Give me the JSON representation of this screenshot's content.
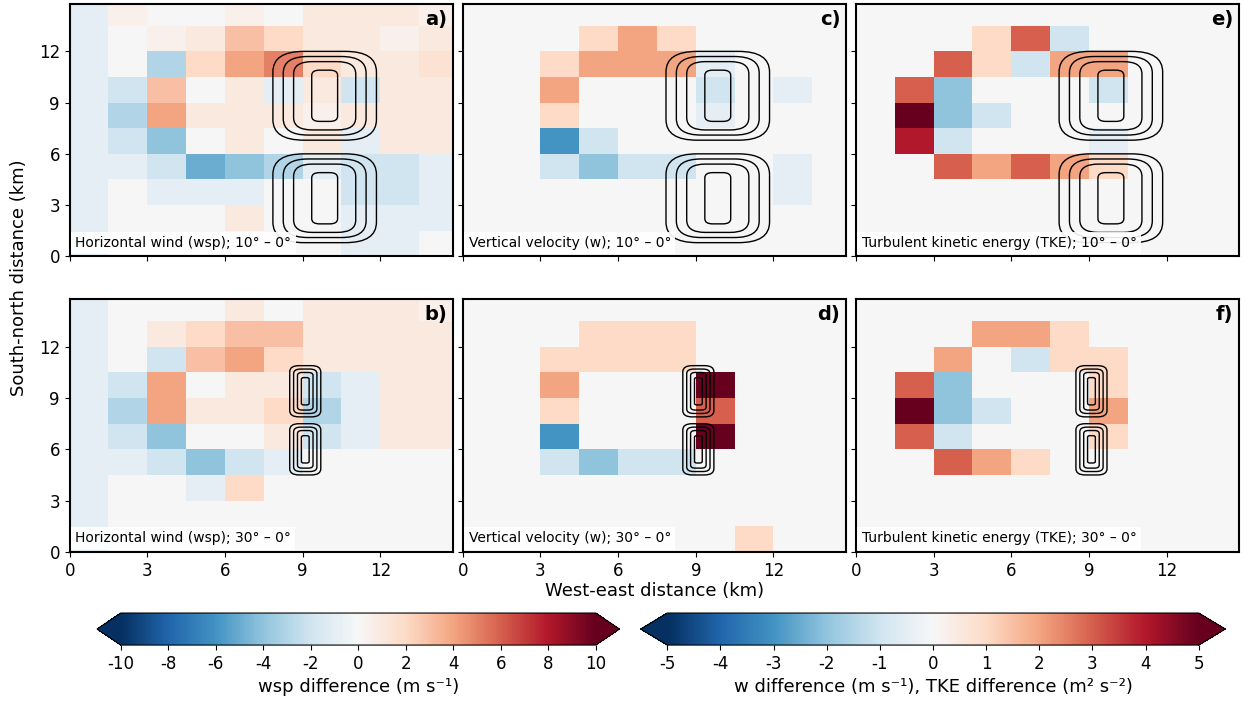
{
  "chart_data": [
    {
      "type": "heatmap",
      "panel_label": "a)",
      "title": "Horizontal wind (wsp); 10° – 0°",
      "ylabel": "South-north distance (km)",
      "xlim": [
        0,
        14.8
      ],
      "ylim": [
        0,
        14.8
      ],
      "xticks": [
        0,
        3,
        6,
        9,
        12
      ],
      "yticks": [
        0,
        3,
        6,
        9,
        12
      ],
      "tick_labels": "y",
      "clim": [
        -10,
        10
      ],
      "x_edges": [
        0,
        1.5,
        3,
        4.5,
        6,
        7.5,
        9,
        10.5,
        12,
        13.5,
        15
      ],
      "y_edges": [
        0,
        1.5,
        3,
        4.5,
        6,
        7.5,
        9,
        10.5,
        12,
        13.5,
        15
      ],
      "cells": [
        [
          -1,
          0,
          0,
          0,
          0,
          0,
          0,
          -1,
          -1,
          0
        ],
        [
          -1,
          0,
          0,
          0,
          1,
          0,
          0,
          -1,
          -1,
          -1
        ],
        [
          -1,
          0,
          -1,
          -1,
          -1,
          0,
          0,
          -2,
          -2,
          -1
        ],
        [
          -1,
          -1,
          -2,
          -5,
          -4,
          -3,
          -1,
          -2,
          -2,
          -1
        ],
        [
          -1,
          -2,
          -4,
          0,
          1,
          0,
          1,
          -1,
          1,
          1
        ],
        [
          -1,
          -3,
          4,
          1,
          1,
          1,
          0.5,
          1,
          1,
          1
        ],
        [
          -1,
          -2,
          3,
          0,
          1,
          -1,
          1,
          -2,
          1,
          1
        ],
        [
          -1,
          0,
          -3,
          2,
          4,
          5,
          2,
          1,
          1,
          1.5
        ],
        [
          -1,
          0,
          0.5,
          1,
          3,
          2,
          1,
          1,
          0.5,
          1
        ],
        [
          -1,
          0.5,
          0,
          0,
          0.5,
          0,
          1,
          1,
          1,
          0.5
        ]
      ],
      "contours": [
        {
          "x": 9.85,
          "y": 9.4,
          "half_widths": [
            0.5,
            1.2,
            1.6,
            2.0
          ],
          "half_heights": [
            1.5,
            2.0,
            2.3,
            2.6
          ]
        },
        {
          "x": 9.85,
          "y": 3.4,
          "half_widths": [
            0.5,
            1.2,
            1.6,
            2.0
          ],
          "half_heights": [
            1.5,
            2.0,
            2.3,
            2.6
          ]
        }
      ]
    },
    {
      "type": "heatmap",
      "panel_label": "b)",
      "title": "Horizontal wind (wsp); 30° – 0°",
      "xlim": [
        0,
        14.8
      ],
      "ylim": [
        0,
        14.8
      ],
      "xticks": [
        0,
        3,
        6,
        9,
        12
      ],
      "yticks": [
        0,
        3,
        6,
        9,
        12
      ],
      "tick_labels": true,
      "clim": [
        -10,
        10
      ],
      "x_edges": [
        0,
        1.5,
        3,
        4.5,
        6,
        7.5,
        9,
        10.5,
        12,
        13.5,
        15
      ],
      "y_edges": [
        0,
        1.5,
        3,
        4.5,
        6,
        7.5,
        9,
        10.5,
        12,
        13.5,
        15
      ],
      "cells": [
        [
          -1,
          0,
          0,
          0,
          0,
          0,
          0,
          0,
          0,
          0
        ],
        [
          -1,
          0,
          0,
          0,
          0,
          0,
          0,
          0,
          0,
          0
        ],
        [
          -1,
          0,
          0,
          -1,
          2,
          0,
          0,
          0,
          0,
          0
        ],
        [
          -1,
          -1,
          -2,
          -4,
          -2,
          -1,
          0,
          0,
          0,
          0
        ],
        [
          -1,
          -2,
          -4,
          0,
          0,
          1,
          -2,
          -1,
          1,
          1
        ],
        [
          -1,
          -3,
          4,
          1,
          1,
          2,
          -3,
          -1,
          1,
          1
        ],
        [
          -1,
          -2,
          4,
          0,
          1,
          1,
          -2,
          -1,
          1,
          1
        ],
        [
          -1,
          0,
          -2,
          3,
          4,
          2,
          1,
          1,
          1,
          1
        ],
        [
          -1,
          0,
          1,
          2,
          3,
          3,
          1,
          1,
          1,
          1
        ],
        [
          -1,
          0,
          0,
          0,
          1,
          0,
          1,
          1,
          1,
          0.5
        ]
      ],
      "contours": [
        {
          "x": 9.1,
          "y": 9.4,
          "half_widths": [
            0.15,
            0.3,
            0.45,
            0.6
          ],
          "half_heights": [
            0.8,
            1.1,
            1.3,
            1.5
          ]
        },
        {
          "x": 9.1,
          "y": 6.0,
          "half_widths": [
            0.15,
            0.3,
            0.45,
            0.6
          ],
          "half_heights": [
            0.8,
            1.1,
            1.3,
            1.5
          ]
        }
      ]
    },
    {
      "type": "heatmap",
      "panel_label": "c)",
      "title": "Vertical velocity (w); 10° – 0°",
      "xlim": [
        0,
        14.8
      ],
      "ylim": [
        0,
        14.8
      ],
      "xticks": [
        0,
        3,
        6,
        9,
        12
      ],
      "yticks": [
        0,
        3,
        6,
        9,
        12
      ],
      "tick_labels": false,
      "clim": [
        -5,
        5
      ],
      "x_edges": [
        0,
        1.5,
        3,
        4.5,
        6,
        7.5,
        9,
        10.5,
        12,
        13.5,
        15
      ],
      "y_edges": [
        0,
        1.5,
        3,
        4.5,
        6,
        7.5,
        9,
        10.5,
        12,
        13.5,
        15
      ],
      "cells": [
        [
          0,
          0,
          0,
          0,
          0,
          0,
          0,
          0,
          0,
          0
        ],
        [
          0,
          0,
          0,
          0,
          0,
          0,
          0,
          0,
          0,
          0
        ],
        [
          0,
          0,
          0,
          0,
          0,
          0,
          0,
          0,
          -0.5,
          0
        ],
        [
          0,
          0,
          -1,
          -2,
          -1,
          -1,
          0,
          0,
          -0.5,
          0
        ],
        [
          0,
          0,
          -3,
          -1,
          0,
          0,
          0,
          0,
          0,
          0
        ],
        [
          0,
          0,
          1,
          0,
          0,
          0,
          -0.5,
          0,
          0,
          0
        ],
        [
          0,
          0,
          2,
          0,
          0,
          0,
          -1,
          0,
          -0.5,
          0
        ],
        [
          0,
          0,
          1,
          2,
          2,
          2,
          -0.5,
          0,
          0,
          0
        ],
        [
          0,
          0,
          0,
          1,
          2,
          1,
          0,
          0,
          0,
          0
        ],
        [
          0,
          0,
          0,
          0,
          0,
          0,
          0,
          0,
          0,
          0
        ]
      ],
      "contours": [
        {
          "x": 9.85,
          "y": 9.4,
          "half_widths": [
            0.5,
            1.2,
            1.6,
            2.0
          ],
          "half_heights": [
            1.5,
            2.0,
            2.3,
            2.6
          ]
        },
        {
          "x": 9.85,
          "y": 3.4,
          "half_widths": [
            0.5,
            1.2,
            1.6,
            2.0
          ],
          "half_heights": [
            1.5,
            2.0,
            2.3,
            2.6
          ]
        }
      ]
    },
    {
      "type": "heatmap",
      "panel_label": "d)",
      "title": "Vertical velocity (w); 30° – 0°",
      "xlabel": "West-east distance (km)",
      "xlim": [
        0,
        14.8
      ],
      "ylim": [
        0,
        14.8
      ],
      "xticks": [
        0,
        3,
        6,
        9,
        12
      ],
      "yticks": [
        0,
        3,
        6,
        9,
        12
      ],
      "tick_labels": "x",
      "clim": [
        -5,
        5
      ],
      "x_edges": [
        0,
        1.5,
        3,
        4.5,
        6,
        7.5,
        9,
        10.5,
        12,
        13.5,
        15
      ],
      "y_edges": [
        0,
        1.5,
        3,
        4.5,
        6,
        7.5,
        9,
        10.5,
        12,
        13.5,
        15
      ],
      "cells": [
        [
          0,
          0,
          0,
          0,
          0,
          0,
          0,
          1,
          0,
          0
        ],
        [
          0,
          0,
          0,
          0,
          0,
          0,
          0,
          0,
          0,
          0
        ],
        [
          0,
          0,
          0,
          0,
          0,
          0,
          0,
          0,
          0,
          0
        ],
        [
          0,
          0,
          -1,
          -2,
          -1,
          -1,
          0,
          0,
          0,
          0
        ],
        [
          0,
          0,
          -3,
          0,
          0,
          0,
          5,
          0,
          0,
          0
        ],
        [
          0,
          0,
          1,
          0,
          0,
          0,
          3,
          0,
          0,
          0
        ],
        [
          0,
          0,
          2,
          0,
          0,
          0,
          5,
          0,
          0,
          0
        ],
        [
          0,
          0,
          1,
          1,
          1,
          1,
          0,
          0,
          0,
          0
        ],
        [
          0,
          0,
          0,
          1,
          1,
          1,
          0,
          0,
          0,
          0
        ],
        [
          0,
          0,
          0,
          0,
          0,
          0,
          0,
          0,
          0,
          0
        ]
      ],
      "contours": [
        {
          "x": 9.1,
          "y": 9.4,
          "half_widths": [
            0.15,
            0.3,
            0.45,
            0.6
          ],
          "half_heights": [
            0.8,
            1.1,
            1.3,
            1.5
          ]
        },
        {
          "x": 9.1,
          "y": 6.0,
          "half_widths": [
            0.15,
            0.3,
            0.45,
            0.6
          ],
          "half_heights": [
            0.8,
            1.1,
            1.3,
            1.5
          ]
        }
      ]
    },
    {
      "type": "heatmap",
      "panel_label": "e)",
      "title": "Turbulent kinetic energy (TKE); 10° – 0°",
      "xlim": [
        0,
        14.8
      ],
      "ylim": [
        0,
        14.8
      ],
      "xticks": [
        0,
        3,
        6,
        9,
        12
      ],
      "yticks": [
        0,
        3,
        6,
        9,
        12
      ],
      "tick_labels": false,
      "clim": [
        -5,
        5
      ],
      "x_edges": [
        0,
        1.5,
        3,
        4.5,
        6,
        7.5,
        9,
        10.5,
        12,
        13.5,
        15
      ],
      "y_edges": [
        0,
        1.5,
        3,
        4.5,
        6,
        7.5,
        9,
        10.5,
        12,
        13.5,
        15
      ],
      "cells": [
        [
          0,
          0,
          0,
          0,
          0,
          0,
          0,
          0,
          0,
          0
        ],
        [
          0,
          0,
          0,
          0,
          0,
          0,
          0,
          0,
          0,
          0
        ],
        [
          0,
          0,
          0,
          0,
          0,
          0,
          0,
          0,
          0,
          0
        ],
        [
          0,
          0,
          3,
          2,
          3,
          2,
          1,
          0,
          0,
          0
        ],
        [
          0,
          4,
          -1,
          0,
          0,
          0,
          -0.5,
          0,
          0,
          0
        ],
        [
          0,
          5,
          -2,
          -1,
          0,
          0,
          0,
          0,
          0,
          0
        ],
        [
          0,
          3,
          -2,
          0,
          0,
          0,
          -1,
          0,
          0,
          0
        ],
        [
          0,
          0,
          3,
          1,
          -1,
          2,
          2,
          0,
          0,
          0
        ],
        [
          0,
          0,
          0,
          1,
          3,
          -1,
          0,
          0,
          0,
          0
        ],
        [
          0,
          0,
          0,
          0,
          0,
          0,
          0,
          0,
          0,
          0
        ]
      ],
      "contours": [
        {
          "x": 9.85,
          "y": 9.4,
          "half_widths": [
            0.5,
            1.2,
            1.6,
            2.0
          ],
          "half_heights": [
            1.5,
            2.0,
            2.3,
            2.6
          ]
        },
        {
          "x": 9.85,
          "y": 3.4,
          "half_widths": [
            0.5,
            1.2,
            1.6,
            2.0
          ],
          "half_heights": [
            1.5,
            2.0,
            2.3,
            2.6
          ]
        }
      ]
    },
    {
      "type": "heatmap",
      "panel_label": "f)",
      "title": "Turbulent kinetic energy (TKE); 30° – 0°",
      "xlim": [
        0,
        14.8
      ],
      "ylim": [
        0,
        14.8
      ],
      "xticks": [
        0,
        3,
        6,
        9,
        12
      ],
      "yticks": [
        0,
        3,
        6,
        9,
        12
      ],
      "tick_labels": "x",
      "clim": [
        -5,
        5
      ],
      "x_edges": [
        0,
        1.5,
        3,
        4.5,
        6,
        7.5,
        9,
        10.5,
        12,
        13.5,
        15
      ],
      "y_edges": [
        0,
        1.5,
        3,
        4.5,
        6,
        7.5,
        9,
        10.5,
        12,
        13.5,
        15
      ],
      "cells": [
        [
          0,
          0,
          0,
          0,
          0,
          0,
          0,
          0,
          0,
          0
        ],
        [
          0,
          0,
          0,
          0,
          0,
          0,
          0,
          0,
          0,
          0
        ],
        [
          0,
          0,
          0,
          0,
          0,
          0,
          0,
          0,
          0,
          0
        ],
        [
          0,
          0,
          3,
          2,
          1,
          0,
          0,
          0,
          0,
          0
        ],
        [
          0,
          3,
          -1,
          0,
          0,
          0,
          1,
          0,
          0,
          0
        ],
        [
          0,
          5,
          -2,
          -1,
          0,
          0,
          2,
          0,
          0,
          0
        ],
        [
          0,
          3,
          -2,
          0,
          0,
          0,
          1,
          0,
          0,
          0
        ],
        [
          0,
          0,
          2,
          0,
          -1,
          1,
          1,
          0,
          0,
          0
        ],
        [
          0,
          0,
          0,
          2,
          2,
          1,
          0,
          0,
          0,
          0
        ],
        [
          0,
          0,
          0,
          0,
          0,
          0,
          0,
          0,
          0,
          0
        ]
      ],
      "contours": [
        {
          "x": 9.1,
          "y": 9.4,
          "half_widths": [
            0.15,
            0.3,
            0.45,
            0.6
          ],
          "half_heights": [
            0.8,
            1.1,
            1.3,
            1.5
          ]
        },
        {
          "x": 9.1,
          "y": 6.0,
          "half_widths": [
            0.15,
            0.3,
            0.45,
            0.6
          ],
          "half_heights": [
            0.8,
            1.1,
            1.3,
            1.5
          ]
        }
      ]
    }
  ],
  "colorbars": [
    {
      "label": "wsp difference (m s⁻¹)",
      "range": [
        -10,
        10
      ],
      "ticks": [
        -10,
        -8,
        -6,
        -4,
        -2,
        0,
        2,
        4,
        6,
        8,
        10
      ]
    },
    {
      "label": "w difference (m s⁻¹), TKE difference (m² s⁻²)",
      "range": [
        -5,
        5
      ],
      "ticks": [
        -5,
        -4,
        -3,
        -2,
        -1,
        0,
        1,
        2,
        3,
        4,
        5
      ]
    }
  ]
}
